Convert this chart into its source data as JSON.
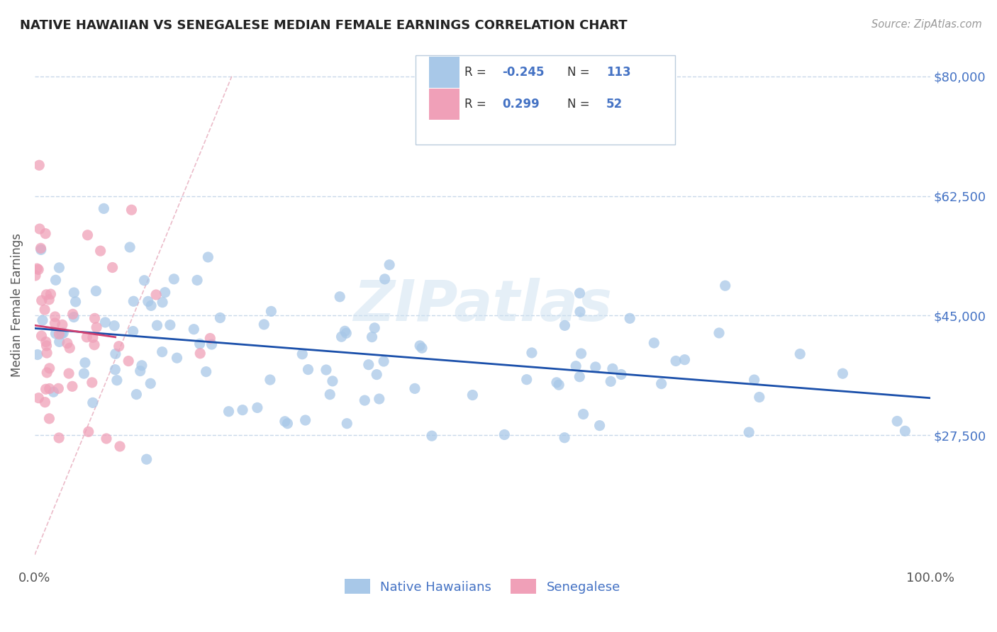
{
  "title": "NATIVE HAWAIIAN VS SENEGALESE MEDIAN FEMALE EARNINGS CORRELATION CHART",
  "source": "Source: ZipAtlas.com",
  "ylabel": "Median Female Earnings",
  "xlim": [
    0,
    1.0
  ],
  "ylim": [
    8000,
    85000
  ],
  "yticks": [
    27500,
    45000,
    62500,
    80000
  ],
  "ytick_labels": [
    "$27,500",
    "$45,000",
    "$62,500",
    "$80,000"
  ],
  "xtick_labels": [
    "0.0%",
    "100.0%"
  ],
  "blue_color": "#a8c8e8",
  "pink_color": "#f0a0b8",
  "blue_line_color": "#1a4faa",
  "pink_line_color": "#d04070",
  "grid_color": "#c8d8ea",
  "diag_color": "#e8b0c0",
  "watermark_color": "#cce0f0",
  "title_color": "#222222",
  "source_color": "#999999",
  "ylabel_color": "#555555",
  "xtick_color": "#555555",
  "ytick_right_color": "#4472c4",
  "legend_text_color": "#4472c4",
  "legend_label_color": "#333333",
  "blue_R": -0.245,
  "blue_N": 113,
  "pink_R": 0.299,
  "pink_N": 52,
  "legend_bottom_labels": [
    "Native Hawaiians",
    "Senegalese"
  ]
}
